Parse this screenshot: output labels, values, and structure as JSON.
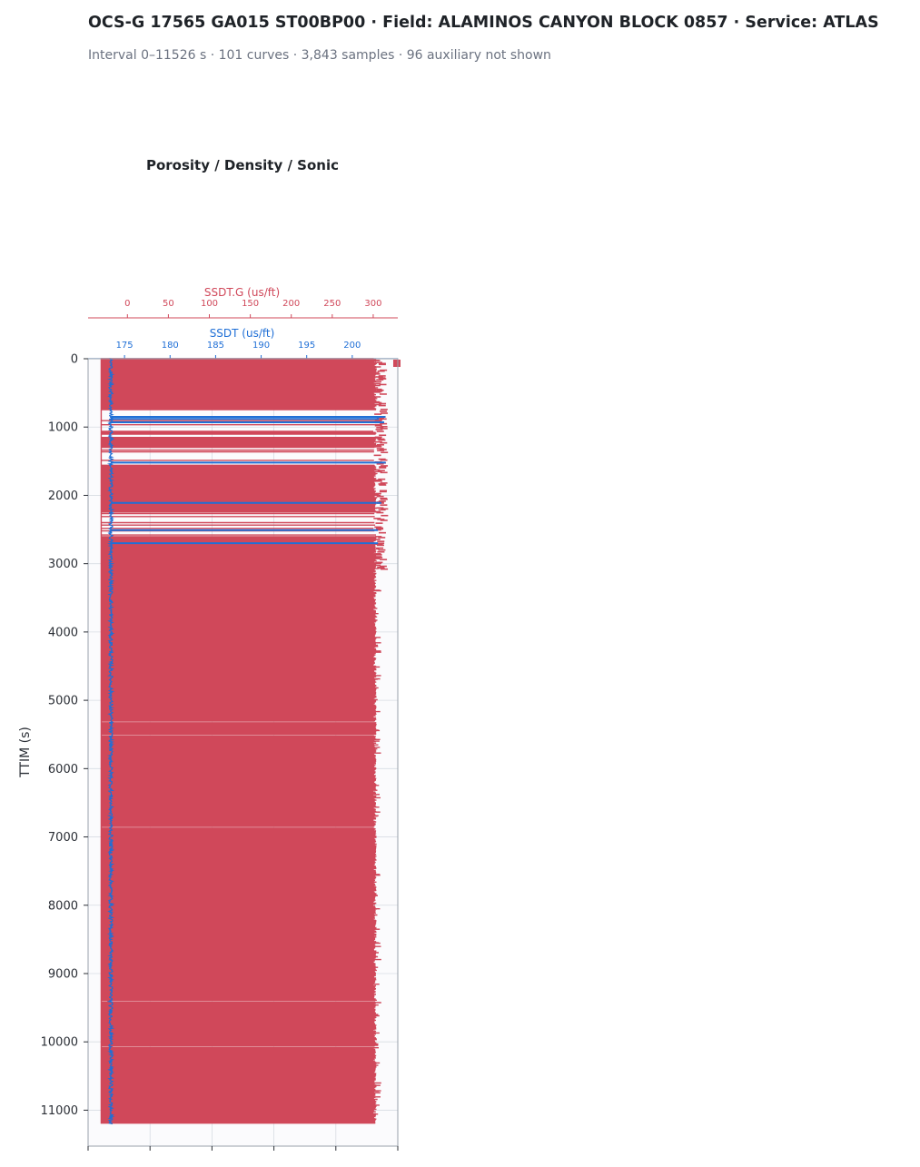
{
  "header": {
    "title": "OCS-G 17565 GA015 ST00BP00 · Field: ALAMINOS CANYON BLOCK 0857 · Service: ATLAS",
    "subtitle": "Interval 0–11526 s · 101 curves · 3,843 samples · 96 auxiliary not shown"
  },
  "colors": {
    "ssdt_g": "#d0485a",
    "ssdt": "#1f6fd6",
    "grid": "#d8dce3",
    "track_bg": "#fbfbfd"
  },
  "chart_data": {
    "type": "line",
    "title": "Porosity / Density / Sonic",
    "ylabel": "TTIM (s)",
    "ylim": [
      0,
      11526
    ],
    "y_inverted": true,
    "y_ticks": [
      0,
      1000,
      2000,
      3000,
      4000,
      5000,
      6000,
      7000,
      8000,
      9000,
      10000,
      11000
    ],
    "series": [
      {
        "name": "SSDT.G (us/ft)",
        "axis": "top-outer",
        "xlim": [
          -48,
          330
        ],
        "x_ticks": [
          0,
          50,
          100,
          150,
          200,
          250,
          300
        ],
        "baseline": -32,
        "spike_max": 302,
        "sample_interval": 3,
        "spike_bands": [
          [
            0,
            750
          ],
          [
            1150,
            1300
          ],
          [
            1550,
            2250
          ],
          [
            2600,
            9150
          ],
          [
            9150,
            9500
          ],
          [
            9500,
            11200
          ]
        ],
        "sparse_bands": [
          [
            750,
            1150
          ],
          [
            1300,
            1550
          ],
          [
            2250,
            2600
          ]
        ],
        "tail_end": 11200
      },
      {
        "name": "SSDT (us/ft)",
        "axis": "top-inner",
        "xlim": [
          171,
          205
        ],
        "x_ticks": [
          175,
          180,
          185,
          190,
          195,
          200
        ],
        "baseline": 173.5,
        "spike_max": 203,
        "blue_spikes": [
          850,
          880,
          930,
          1520,
          2110,
          2510,
          2700
        ]
      }
    ]
  }
}
